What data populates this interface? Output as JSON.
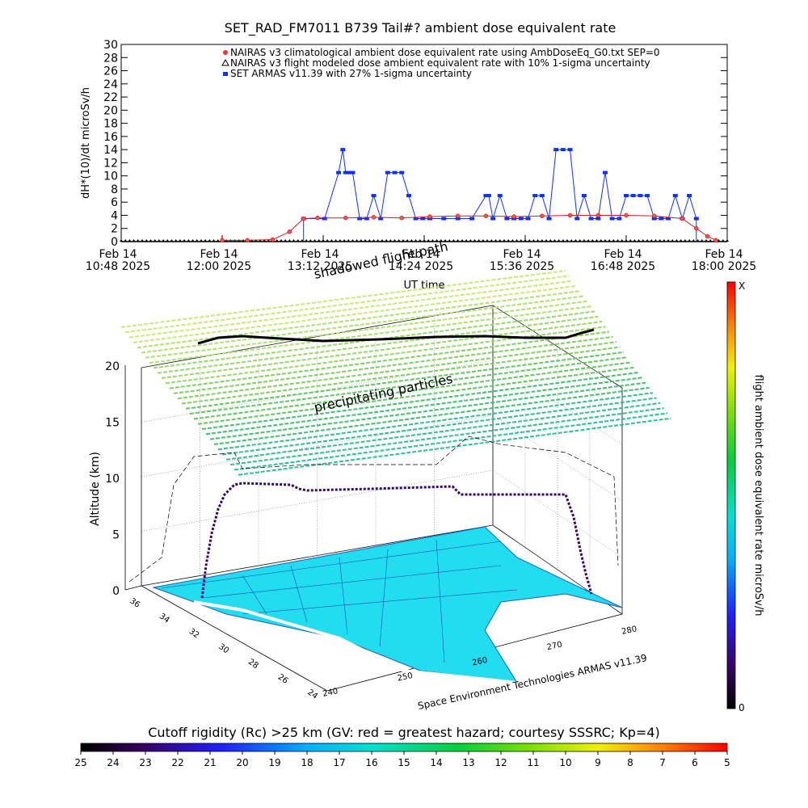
{
  "header": {
    "title": "SET_RAD_FM7011  B739 Tail#? ambient dose equivalent rate"
  },
  "chart_data": [
    {
      "type": "line",
      "title": "SET_RAD_FM7011  B739 Tail#? ambient dose equivalent rate",
      "xlabel": "UT time",
      "ylabel": "dH*(10)/dt microSv/h",
      "ylim": [
        0,
        30
      ],
      "yticks": [
        "0",
        "2",
        "4",
        "6",
        "8",
        "10",
        "12",
        "14",
        "16",
        "18",
        "20",
        "22",
        "24",
        "26",
        "28",
        "30"
      ],
      "xtick_labels": [
        [
          "Feb 14",
          "10:48 2025"
        ],
        [
          "Feb 14",
          "12:00 2025"
        ],
        [
          "Feb 14",
          "13:12 2025"
        ],
        [
          "Feb 14",
          "14:24 2025"
        ],
        [
          "Feb 14",
          "15:36 2025"
        ],
        [
          "Feb 14",
          "16:48 2025"
        ],
        [
          "Feb 14",
          "18:00 2025"
        ]
      ],
      "x_units": "minutes after Feb 14 10:48 2025 UT",
      "xlim": [
        0,
        432
      ],
      "legend_position": "top",
      "series": [
        {
          "name": "NAIRAS v3 climatological ambient dose equivalent rate using AmbDoseEq_G0.txt SEP=0",
          "marker": "circle",
          "color": "#ff3030",
          "x": [
            72,
            90,
            108,
            120,
            130,
            140,
            160,
            180,
            200,
            220,
            240,
            260,
            280,
            300,
            320,
            340,
            360,
            380,
            400,
            410,
            418,
            424
          ],
          "values": [
            0.2,
            0.2,
            0.3,
            1.5,
            3.5,
            3.6,
            3.6,
            3.7,
            3.6,
            3.8,
            3.9,
            3.9,
            3.8,
            3.9,
            4.0,
            4.0,
            4.0,
            3.9,
            3.5,
            2.0,
            0.8,
            0.2
          ]
        },
        {
          "name": "NAIRAS v3 flight modeled dose ambient equivalent rate with 10% 1-sigma uncertainty",
          "marker": "triangle",
          "color": "#000000",
          "x": [
            0,
            60,
            120,
            180,
            240,
            300,
            360,
            432
          ],
          "values": [
            0,
            0,
            0,
            0,
            0,
            0,
            0,
            0
          ]
        },
        {
          "name": "SET ARMAS v11.39 with 27% 1-sigma uncertainty",
          "marker": "square",
          "color": "#1030ff",
          "x": [
            130,
            145,
            155,
            158,
            160,
            162,
            165,
            170,
            175,
            180,
            185,
            190,
            195,
            200,
            205,
            210,
            215,
            220,
            230,
            240,
            250,
            260,
            262,
            265,
            270,
            275,
            280,
            285,
            290,
            295,
            300,
            305,
            310,
            315,
            320,
            325,
            330,
            335,
            340,
            345,
            350,
            355,
            360,
            365,
            370,
            375,
            380,
            385,
            390,
            395,
            400,
            405,
            410
          ],
          "values": [
            3.5,
            3.5,
            10.5,
            14.0,
            10.5,
            10.5,
            10.5,
            3.5,
            3.5,
            7.0,
            3.5,
            10.5,
            10.5,
            10.5,
            7.0,
            3.5,
            3.5,
            3.5,
            3.5,
            3.5,
            3.5,
            7.0,
            7.0,
            3.5,
            7.0,
            3.5,
            3.5,
            3.5,
            3.5,
            7.0,
            7.0,
            3.5,
            14.0,
            14.0,
            14.0,
            3.5,
            7.0,
            3.5,
            3.5,
            10.5,
            3.5,
            3.5,
            7.0,
            7.0,
            7.0,
            7.0,
            3.5,
            3.5,
            3.5,
            7.0,
            3.5,
            7.0,
            3.5
          ]
        }
      ]
    },
    {
      "type": "scatter",
      "subtype": "3d flight path over map",
      "ylabel": "Altitude (km)",
      "zticks": [
        "0",
        "5",
        "10",
        "15",
        "20"
      ],
      "lat_ticks": [
        "36",
        "34",
        "32",
        "30",
        "28",
        "26",
        "24"
      ],
      "lon_ticks": [
        "240",
        "250",
        "260",
        "270",
        "280"
      ],
      "annotations": [
        "shadowed flight path",
        "precipitating particles"
      ],
      "credit": "Space Environment Technologies ARMAS v11.39",
      "flight_path_altitude_km": [
        0,
        2,
        5,
        9.5,
        10,
        10,
        9.8,
        9.5,
        9.3,
        9.3,
        9.5,
        9.0,
        8.8,
        5,
        0.5
      ],
      "colorbar_label": "flight ambient dose equivalent rate microSv/h",
      "colorbar_top": "X",
      "colorbar_bottom": "0"
    },
    {
      "type": "heatmap",
      "subtype": "colorbar",
      "title": "Cutoff rigidity (Rc) >25 km (GV: red = greatest hazard; courtesy SSSRC; Kp=4)",
      "tick_labels": [
        "25",
        "24",
        "23",
        "22",
        "21",
        "20",
        "19",
        "18",
        "17",
        "16",
        "15",
        "14",
        "13",
        "12",
        "11",
        "10",
        "9",
        "8",
        "7",
        "6",
        "5"
      ]
    }
  ]
}
